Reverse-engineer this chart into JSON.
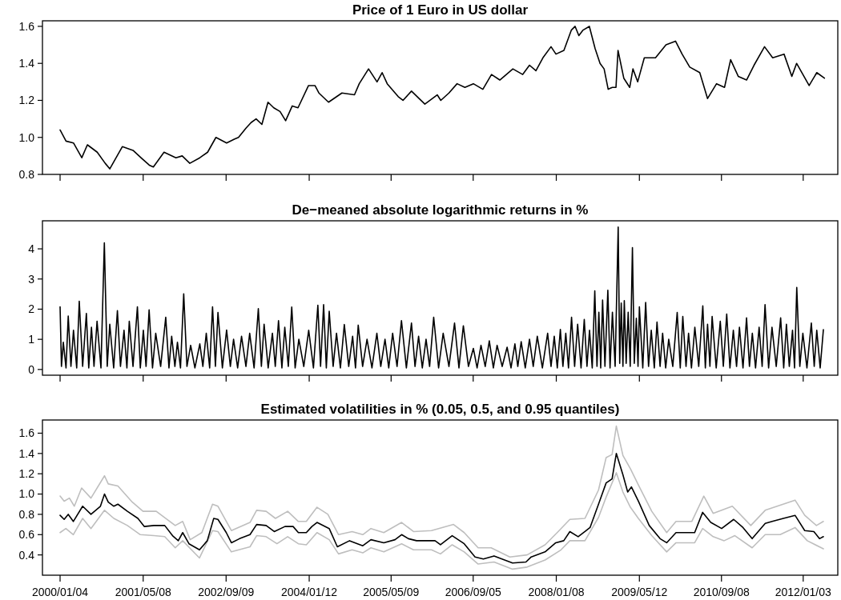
{
  "chart_data": [
    {
      "type": "line",
      "title": "Price of 1 Euro in US dollar",
      "xlim": [
        "1999-09-22",
        "2012-07-25"
      ],
      "ylim": [
        0.8,
        1.63
      ],
      "xticks": [
        {
          "value": "2000-01-04",
          "label": null
        },
        {
          "value": "2001-05-08",
          "label": null
        },
        {
          "value": "2002-09-09",
          "label": null
        },
        {
          "value": "2004-01-12",
          "label": null
        },
        {
          "value": "2005-05-09",
          "label": null
        },
        {
          "value": "2006-09-05",
          "label": null
        },
        {
          "value": "2008-01-08",
          "label": null
        },
        {
          "value": "2009-05-12",
          "label": null
        },
        {
          "value": "2010-09-08",
          "label": null
        },
        {
          "value": "2012-01-03",
          "label": null
        }
      ],
      "yticks": [
        0.8,
        {
          "value": 1,
          "label": "1.0"
        },
        1.2,
        1.4,
        1.6
      ],
      "tick_labels": "y",
      "grid": false,
      "series": [
        {
          "color": "#000000",
          "x": [
            "2000-01-04",
            "2000-02-08",
            "2000-03-23",
            "2000-05-11",
            "2000-06-13",
            "2000-08-10",
            "2000-09-26",
            "2000-10-23",
            "2001-01-05",
            "2001-03-09",
            "2001-04-25",
            "2001-06-13",
            "2001-07-07",
            "2001-09-08",
            "2001-11-17",
            "2001-12-24",
            "2002-02-07",
            "2002-04-07",
            "2002-05-23",
            "2002-07-11",
            "2002-09-12",
            "2002-10-27",
            "2002-11-21",
            "2003-01-04",
            "2003-02-03",
            "2003-03-05",
            "2003-04-08",
            "2003-05-14",
            "2003-06-17",
            "2003-07-24",
            "2003-08-26",
            "2003-10-04",
            "2003-11-07",
            "2004-01-08",
            "2004-02-15",
            "2004-03-09",
            "2004-05-05",
            "2004-07-23",
            "2004-10-05",
            "2004-11-02",
            "2004-12-27",
            "2005-02-15",
            "2005-03-17",
            "2005-04-16",
            "2005-06-20",
            "2005-07-18",
            "2005-09-06",
            "2005-11-24",
            "2006-02-05",
            "2006-02-26",
            "2006-04-15",
            "2006-06-02",
            "2006-07-18",
            "2006-09-06",
            "2006-11-01",
            "2006-12-22",
            "2007-02-09",
            "2007-04-27",
            "2007-06-24",
            "2007-08-03",
            "2007-09-10",
            "2007-10-21",
            "2007-12-08",
            "2008-01-06",
            "2008-02-22",
            "2008-04-06",
            "2008-04-28",
            "2008-05-20",
            "2008-06-14",
            "2008-07-21",
            "2008-08-24",
            "2008-09-22",
            "2008-10-16",
            "2008-11-09",
            "2008-12-03",
            "2008-12-25",
            "2009-01-06",
            "2009-02-09",
            "2009-03-16",
            "2009-04-04",
            "2009-05-02",
            "2009-06-10",
            "2009-08-15",
            "2009-10-16",
            "2009-12-11",
            "2010-01-19",
            "2010-03-05",
            "2010-05-03",
            "2010-06-18",
            "2010-08-10",
            "2010-09-26",
            "2010-11-01",
            "2010-12-16",
            "2011-02-03",
            "2011-03-19",
            "2011-05-20",
            "2011-07-07",
            "2011-09-12",
            "2011-10-28",
            "2011-11-25",
            "2012-02-07",
            "2012-03-23",
            "2012-05-07"
          ],
          "values": [
            1.04,
            0.98,
            0.97,
            0.89,
            0.96,
            0.92,
            0.86,
            0.83,
            0.95,
            0.93,
            0.89,
            0.85,
            0.84,
            0.92,
            0.89,
            0.9,
            0.86,
            0.89,
            0.92,
            1.0,
            0.97,
            0.99,
            1.0,
            1.05,
            1.08,
            1.1,
            1.07,
            1.19,
            1.16,
            1.14,
            1.09,
            1.17,
            1.16,
            1.28,
            1.28,
            1.24,
            1.19,
            1.24,
            1.23,
            1.29,
            1.37,
            1.3,
            1.35,
            1.29,
            1.22,
            1.2,
            1.25,
            1.18,
            1.23,
            1.2,
            1.24,
            1.29,
            1.27,
            1.29,
            1.26,
            1.34,
            1.31,
            1.37,
            1.34,
            1.39,
            1.36,
            1.43,
            1.49,
            1.45,
            1.47,
            1.58,
            1.6,
            1.55,
            1.58,
            1.6,
            1.48,
            1.4,
            1.37,
            1.26,
            1.27,
            1.27,
            1.47,
            1.32,
            1.27,
            1.37,
            1.3,
            1.43,
            1.43,
            1.5,
            1.52,
            1.45,
            1.38,
            1.35,
            1.21,
            1.29,
            1.27,
            1.42,
            1.33,
            1.31,
            1.39,
            1.49,
            1.43,
            1.45,
            1.33,
            1.4,
            1.28,
            1.35,
            1.32
          ]
        }
      ]
    },
    {
      "type": "line",
      "title": "De−meaned absolute logarithmic returns in %",
      "xlim": [
        "1999-09-22",
        "2012-07-25"
      ],
      "ylim": [
        -0.19,
        4.93
      ],
      "xticks": [
        {
          "value": "2000-01-04",
          "label": null
        },
        {
          "value": "2001-05-08",
          "label": null
        },
        {
          "value": "2002-09-09",
          "label": null
        },
        {
          "value": "2004-01-12",
          "label": null
        },
        {
          "value": "2005-05-09",
          "label": null
        },
        {
          "value": "2006-09-05",
          "label": null
        },
        {
          "value": "2008-01-08",
          "label": null
        },
        {
          "value": "2009-05-12",
          "label": null
        },
        {
          "value": "2010-09-08",
          "label": null
        },
        {
          "value": "2012-01-03",
          "label": null
        }
      ],
      "yticks": [
        0,
        1,
        2,
        3,
        4
      ],
      "tick_labels": "y",
      "grid": false,
      "series": [
        {
          "color": "#000000",
          "x": [
            "2000-01-04",
            "2000-01-12",
            "2000-01-23",
            "2000-02-08",
            "2000-02-21",
            "2000-03-08",
            "2000-03-23",
            "2000-04-11",
            "2000-04-26",
            "2000-05-16",
            "2000-06-07",
            "2000-06-21",
            "2000-07-07",
            "2000-07-22",
            "2000-08-09",
            "2000-09-01",
            "2000-09-21",
            "2000-10-08",
            "2000-10-23",
            "2000-11-15",
            "2000-12-07",
            "2000-12-25",
            "2001-01-15",
            "2001-02-01",
            "2001-02-15",
            "2001-03-09",
            "2001-04-04",
            "2001-04-21",
            "2001-05-09",
            "2001-05-25",
            "2001-06-12",
            "2001-07-02",
            "2001-07-21",
            "2001-08-19",
            "2001-09-18",
            "2001-10-07",
            "2001-10-23",
            "2001-11-11",
            "2001-11-26",
            "2001-12-14",
            "2002-01-02",
            "2002-01-21",
            "2002-02-12",
            "2002-03-09",
            "2002-04-07",
            "2002-04-25",
            "2002-05-15",
            "2002-06-04",
            "2002-06-21",
            "2002-07-08",
            "2002-07-23",
            "2002-08-18",
            "2002-09-12",
            "2002-10-04",
            "2002-10-23",
            "2002-11-16",
            "2002-12-09",
            "2003-01-04",
            "2003-01-26",
            "2003-02-21",
            "2003-03-18",
            "2003-04-05",
            "2003-04-21",
            "2003-05-15",
            "2003-06-09",
            "2003-06-26",
            "2003-07-15",
            "2003-08-04",
            "2003-08-21",
            "2003-09-11",
            "2003-10-01",
            "2003-10-21",
            "2003-11-12",
            "2003-12-11",
            "2004-01-09",
            "2004-02-06",
            "2004-03-03",
            "2004-03-19",
            "2004-04-06",
            "2004-04-22",
            "2004-05-09",
            "2004-06-01",
            "2004-06-21",
            "2004-07-14",
            "2004-08-06",
            "2004-09-01",
            "2004-09-24",
            "2004-10-11",
            "2004-10-27",
            "2004-11-22",
            "2004-12-18",
            "2005-01-16",
            "2005-02-14",
            "2005-03-09",
            "2005-04-03",
            "2005-04-25",
            "2005-05-18",
            "2005-06-13",
            "2005-07-09",
            "2005-08-07",
            "2005-09-06",
            "2005-09-27",
            "2005-10-18",
            "2005-11-09",
            "2005-12-01",
            "2005-12-22",
            "2006-01-15",
            "2006-02-13",
            "2006-03-12",
            "2006-04-15",
            "2006-05-18",
            "2006-06-13",
            "2006-07-09",
            "2006-08-08",
            "2006-09-06",
            "2006-09-28",
            "2006-10-21",
            "2006-11-15",
            "2006-12-09",
            "2007-01-02",
            "2007-01-24",
            "2007-02-23",
            "2007-03-24",
            "2007-04-16",
            "2007-05-09",
            "2007-05-26",
            "2007-06-15",
            "2007-07-09",
            "2007-08-03",
            "2007-08-25",
            "2007-09-18",
            "2007-10-18",
            "2007-11-18",
            "2007-12-08",
            "2007-12-27",
            "2008-01-14",
            "2008-02-01",
            "2008-02-16",
            "2008-03-04",
            "2008-03-20",
            "2008-04-07",
            "2008-04-25",
            "2008-05-13",
            "2008-06-02",
            "2008-06-21",
            "2008-07-07",
            "2008-07-22",
            "2008-08-07",
            "2008-08-22",
            "2008-09-04",
            "2008-09-15",
            "2008-09-26",
            "2008-10-07",
            "2008-10-21",
            "2008-11-07",
            "2008-11-20",
            "2008-12-04",
            "2008-12-20",
            "2009-01-07",
            "2009-01-16",
            "2009-01-25",
            "2009-02-04",
            "2009-02-12",
            "2009-02-23",
            "2009-03-07",
            "2009-03-19",
            "2009-04-01",
            "2009-04-12",
            "2009-04-24",
            "2009-05-04",
            "2009-05-12",
            "2009-06-01",
            "2009-06-18",
            "2009-07-05",
            "2009-07-21",
            "2009-08-08",
            "2009-08-24",
            "2009-09-11",
            "2009-09-26",
            "2009-10-14",
            "2009-11-01",
            "2009-11-25",
            "2009-12-21",
            "2010-01-08",
            "2010-01-23",
            "2010-02-11",
            "2010-02-26",
            "2010-03-15",
            "2010-04-04",
            "2010-04-27",
            "2010-05-21",
            "2010-06-05",
            "2010-06-18",
            "2010-07-02",
            "2010-07-15",
            "2010-08-08",
            "2010-09-01",
            "2010-09-19",
            "2010-10-09",
            "2010-10-28",
            "2010-11-17",
            "2010-12-06",
            "2010-12-23",
            "2011-01-13",
            "2011-02-03",
            "2011-02-20",
            "2011-03-09",
            "2011-03-28",
            "2011-04-18",
            "2011-05-06",
            "2011-05-23",
            "2011-06-13",
            "2011-07-03",
            "2011-07-28",
            "2011-08-23",
            "2011-09-10",
            "2011-09-26",
            "2011-10-13",
            "2011-11-01",
            "2011-11-13",
            "2011-11-26",
            "2011-12-14",
            "2012-01-01",
            "2012-01-25",
            "2012-02-20",
            "2012-03-08",
            "2012-03-23",
            "2012-04-12",
            "2012-05-01"
          ],
          "values": [
            2.08,
            0.1,
            0.9,
            0.05,
            1.77,
            0.1,
            1.3,
            0.05,
            2.26,
            0.1,
            1.86,
            0.05,
            1.4,
            0.1,
            1.6,
            0.05,
            4.2,
            0.1,
            1.5,
            0.05,
            1.95,
            0.1,
            1.3,
            0.05,
            1.6,
            0.1,
            2.08,
            0.05,
            1.3,
            0.1,
            1.98,
            0.05,
            1.2,
            0.1,
            1.73,
            0.05,
            1.1,
            0.1,
            0.9,
            0.05,
            2.51,
            0.1,
            0.8,
            0.05,
            0.85,
            0.1,
            1.2,
            0.05,
            2.08,
            0.1,
            1.89,
            0.05,
            1.31,
            0.1,
            1.0,
            0.05,
            1.1,
            0.1,
            1.2,
            0.05,
            2.02,
            0.1,
            1.5,
            0.05,
            1.2,
            0.1,
            1.62,
            0.05,
            1.4,
            0.1,
            2.07,
            0.05,
            1.0,
            0.1,
            1.3,
            0.05,
            2.13,
            0.1,
            2.15,
            0.05,
            1.93,
            0.1,
            1.2,
            0.05,
            1.49,
            0.1,
            1.1,
            0.05,
            1.47,
            0.1,
            1.0,
            0.05,
            1.2,
            0.1,
            1.0,
            0.05,
            1.2,
            0.1,
            1.62,
            0.05,
            1.54,
            0.1,
            1.1,
            0.05,
            1.0,
            0.1,
            1.73,
            0.05,
            1.2,
            0.1,
            1.54,
            0.05,
            1.45,
            0.1,
            0.7,
            0.05,
            0.8,
            0.1,
            0.95,
            0.05,
            0.8,
            0.1,
            0.74,
            0.05,
            0.85,
            0.1,
            0.92,
            0.05,
            1.0,
            0.1,
            1.1,
            0.05,
            1.2,
            0.1,
            1.1,
            0.05,
            1.33,
            0.1,
            1.2,
            0.05,
            1.73,
            0.1,
            1.5,
            0.05,
            1.66,
            0.1,
            1.3,
            0.05,
            2.61,
            0.1,
            1.9,
            0.05,
            2.3,
            0.1,
            2.63,
            0.05,
            1.9,
            0.1,
            4.72,
            0.2,
            2.2,
            0.1,
            2.28,
            0.2,
            1.9,
            0.1,
            4.04,
            0.2,
            1.7,
            0.1,
            2.08,
            0.05,
            2.22,
            0.1,
            1.3,
            0.05,
            1.57,
            0.1,
            1.2,
            0.05,
            1.0,
            0.1,
            1.89,
            0.05,
            1.76,
            0.1,
            1.2,
            0.05,
            1.4,
            0.1,
            2.11,
            0.05,
            1.5,
            0.1,
            1.76,
            0.05,
            1.6,
            0.1,
            1.84,
            0.05,
            1.3,
            0.1,
            1.4,
            0.05,
            1.71,
            0.1,
            1.2,
            0.05,
            1.4,
            0.1,
            2.15,
            0.05,
            1.4,
            0.1,
            1.71,
            0.05,
            1.5,
            0.1,
            1.3,
            0.05,
            2.72,
            0.1,
            1.2,
            0.05,
            1.54,
            0.1,
            1.3,
            0.05,
            1.32
          ]
        }
      ]
    },
    {
      "type": "line",
      "title": "Estimated volatilities in % (0.05, 0.5, and 0.95 quantiles)",
      "xlim": [
        "1999-09-22",
        "2012-07-25"
      ],
      "ylim": [
        0.2,
        1.73
      ],
      "xticks": [
        {
          "value": "2000-01-04",
          "label": "2000/01/04"
        },
        {
          "value": "2001-05-08",
          "label": "2001/05/08"
        },
        {
          "value": "2002-09-09",
          "label": "2002/09/09"
        },
        {
          "value": "2004-01-12",
          "label": "2004/01/12"
        },
        {
          "value": "2005-05-09",
          "label": "2005/05/09"
        },
        {
          "value": "2006-09-05",
          "label": "2006/09/05"
        },
        {
          "value": "2008-01-08",
          "label": "2008/01/08"
        },
        {
          "value": "2009-05-12",
          "label": "2009/05/12"
        },
        {
          "value": "2010-09-08",
          "label": "2010/09/08"
        },
        {
          "value": "2012-01-03",
          "label": "2012/01/03"
        }
      ],
      "yticks": [
        0.4,
        0.6,
        0.8,
        {
          "value": 1,
          "label": "1.0"
        },
        1.2,
        1.4,
        1.6
      ],
      "grid": false,
      "series": [
        {
          "color": "#bebebe",
          "x": [
            "2000-01-04",
            "2000-01-28",
            "2000-02-28",
            "2000-03-28",
            "2000-05-10",
            "2000-07-04",
            "2000-09-22",
            "2000-10-14",
            "2000-12-10",
            "2001-03-05",
            "2001-05-07",
            "2001-07-24",
            "2001-11-13",
            "2001-12-27",
            "2002-02-09",
            "2002-04-19",
            "2002-06-21",
            "2002-07-23",
            "2002-10-10",
            "2003-01-28",
            "2003-03-08",
            "2003-05-03",
            "2003-06-27",
            "2003-09-07",
            "2003-11-09",
            "2003-12-26",
            "2004-02-27",
            "2004-05-01",
            "2004-07-03",
            "2004-09-21",
            "2004-11-23",
            "2005-01-10",
            "2005-03-27",
            "2005-07-10",
            "2005-09-18",
            "2006-01-02",
            "2006-05-12",
            "2006-07-14",
            "2006-10-04",
            "2006-12-20",
            "2007-04-09",
            "2007-07-20",
            "2007-11-03",
            "2008-01-19",
            "2008-03-28",
            "2008-06-25",
            "2008-09-13",
            "2008-10-28",
            "2008-12-02",
            "2008-12-27",
            "2009-02-04",
            "2009-03-20",
            "2009-05-06",
            "2009-07-24",
            "2009-10-20",
            "2009-12-14",
            "2010-03-17",
            "2010-05-27",
            "2010-07-21",
            "2010-11-11",
            "2011-02-28",
            "2011-05-24",
            "2011-08-20",
            "2011-11-16",
            "2012-01-12",
            "2012-03-21",
            "2012-05-01"
          ],
          "values": [
            0.98,
            0.93,
            0.96,
            0.88,
            1.06,
            0.96,
            1.18,
            1.1,
            1.08,
            0.92,
            0.83,
            0.83,
            0.69,
            0.73,
            0.55,
            0.62,
            0.9,
            0.88,
            0.64,
            0.72,
            0.84,
            0.83,
            0.76,
            0.83,
            0.73,
            0.73,
            0.87,
            0.8,
            0.6,
            0.63,
            0.6,
            0.66,
            0.62,
            0.72,
            0.63,
            0.64,
            0.7,
            0.62,
            0.47,
            0.47,
            0.38,
            0.4,
            0.5,
            0.63,
            0.75,
            0.76,
            1.04,
            1.36,
            1.39,
            1.67,
            1.38,
            1.25,
            1.09,
            0.83,
            0.62,
            0.73,
            0.73,
            0.98,
            0.81,
            0.88,
            0.69,
            0.84,
            0.89,
            0.94,
            0.79,
            0.69,
            0.73
          ]
        },
        {
          "color": "#bebebe",
          "x": [
            "2000-01-04",
            "2000-02-07",
            "2000-03-22",
            "2000-05-16",
            "2000-07-04",
            "2000-09-22",
            "2000-11-16",
            "2001-02-04",
            "2001-04-21",
            "2001-07-10",
            "2001-09-12",
            "2001-11-13",
            "2001-12-27",
            "2002-04-05",
            "2002-06-21",
            "2002-07-23",
            "2002-10-10",
            "2003-01-28",
            "2003-03-08",
            "2003-05-03",
            "2003-07-06",
            "2003-09-07",
            "2003-11-09",
            "2003-12-26",
            "2004-02-27",
            "2004-05-09",
            "2004-07-03",
            "2004-09-21",
            "2004-11-23",
            "2005-01-10",
            "2005-03-27",
            "2005-07-10",
            "2005-09-18",
            "2006-01-02",
            "2006-02-24",
            "2006-05-04",
            "2006-07-14",
            "2006-10-04",
            "2007-01-06",
            "2007-04-25",
            "2007-07-20",
            "2007-11-03",
            "2008-02-05",
            "2008-03-28",
            "2008-06-25",
            "2008-09-13",
            "2008-10-28",
            "2008-12-27",
            "2009-02-04",
            "2009-03-20",
            "2009-05-06",
            "2009-07-24",
            "2009-10-20",
            "2009-12-14",
            "2010-04-03",
            "2010-05-20",
            "2010-07-21",
            "2010-09-24",
            "2010-11-26",
            "2011-03-08",
            "2011-05-24",
            "2011-08-20",
            "2011-11-16",
            "2012-01-27",
            "2012-05-01"
          ],
          "values": [
            0.62,
            0.66,
            0.6,
            0.76,
            0.66,
            0.84,
            0.76,
            0.69,
            0.6,
            0.59,
            0.58,
            0.47,
            0.54,
            0.37,
            0.64,
            0.63,
            0.43,
            0.48,
            0.59,
            0.58,
            0.51,
            0.58,
            0.51,
            0.5,
            0.62,
            0.55,
            0.41,
            0.45,
            0.42,
            0.47,
            0.43,
            0.51,
            0.45,
            0.45,
            0.41,
            0.5,
            0.43,
            0.31,
            0.33,
            0.26,
            0.28,
            0.35,
            0.45,
            0.54,
            0.54,
            0.77,
            0.97,
            1.21,
            1.02,
            0.87,
            0.76,
            0.59,
            0.43,
            0.52,
            0.52,
            0.66,
            0.58,
            0.54,
            0.59,
            0.47,
            0.6,
            0.6,
            0.67,
            0.54,
            0.46
          ]
        },
        {
          "color": "#000000",
          "x": [
            "2000-01-04",
            "2000-01-28",
            "2000-02-21",
            "2000-03-22",
            "2000-05-16",
            "2000-07-04",
            "2000-08-29",
            "2000-09-22",
            "2000-10-14",
            "2000-11-16",
            "2000-12-10",
            "2001-02-04",
            "2001-04-07",
            "2001-05-15",
            "2001-07-10",
            "2001-09-12",
            "2001-10-28",
            "2001-12-01",
            "2001-12-27",
            "2002-02-02",
            "2002-04-05",
            "2002-05-21",
            "2002-06-28",
            "2002-07-23",
            "2002-09-10",
            "2002-10-10",
            "2002-11-27",
            "2003-01-28",
            "2003-03-08",
            "2003-05-03",
            "2003-06-20",
            "2003-08-22",
            "2003-10-09",
            "2003-11-09",
            "2003-12-26",
            "2004-01-28",
            "2004-02-27",
            "2004-05-09",
            "2004-06-26",
            "2004-09-06",
            "2004-11-23",
            "2005-01-10",
            "2005-03-27",
            "2005-06-01",
            "2005-07-10",
            "2005-08-19",
            "2005-10-06",
            "2006-01-23",
            "2006-02-24",
            "2006-05-04",
            "2006-07-14",
            "2006-09-16",
            "2006-11-04",
            "2007-01-06",
            "2007-04-25",
            "2007-07-13",
            "2007-08-13",
            "2007-11-03",
            "2008-01-05",
            "2008-02-21",
            "2008-03-28",
            "2008-05-16",
            "2008-06-25",
            "2008-07-25",
            "2008-09-13",
            "2008-10-28",
            "2008-12-02",
            "2008-12-27",
            "2009-02-04",
            "2009-03-04",
            "2009-03-26",
            "2009-05-06",
            "2009-07-09",
            "2009-09-11",
            "2009-10-20",
            "2009-12-14",
            "2010-02-01",
            "2010-04-03",
            "2010-05-20",
            "2010-07-07",
            "2010-09-09",
            "2010-11-19",
            "2011-01-13",
            "2011-03-08",
            "2011-05-24",
            "2011-07-04",
            "2011-09-08",
            "2011-11-16",
            "2012-01-12",
            "2012-03-06",
            "2012-04-08",
            "2012-05-01"
          ],
          "values": [
            0.79,
            0.75,
            0.8,
            0.73,
            0.88,
            0.8,
            0.88,
            1.0,
            0.92,
            0.88,
            0.9,
            0.83,
            0.76,
            0.68,
            0.69,
            0.69,
            0.59,
            0.54,
            0.62,
            0.51,
            0.45,
            0.54,
            0.76,
            0.75,
            0.62,
            0.52,
            0.56,
            0.6,
            0.7,
            0.69,
            0.63,
            0.68,
            0.68,
            0.62,
            0.62,
            0.68,
            0.72,
            0.66,
            0.48,
            0.54,
            0.49,
            0.55,
            0.52,
            0.55,
            0.6,
            0.56,
            0.54,
            0.54,
            0.5,
            0.59,
            0.51,
            0.38,
            0.36,
            0.39,
            0.32,
            0.33,
            0.38,
            0.43,
            0.52,
            0.54,
            0.63,
            0.58,
            0.63,
            0.67,
            0.9,
            1.11,
            1.15,
            1.4,
            1.19,
            1.02,
            1.07,
            0.93,
            0.69,
            0.56,
            0.52,
            0.62,
            0.62,
            0.62,
            0.82,
            0.72,
            0.66,
            0.75,
            0.67,
            0.56,
            0.71,
            0.73,
            0.76,
            0.79,
            0.64,
            0.63,
            0.56,
            0.58
          ]
        }
      ]
    }
  ]
}
